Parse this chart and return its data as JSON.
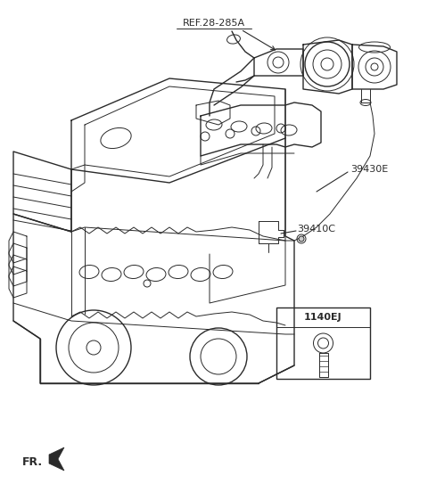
{
  "bg_color": "#ffffff",
  "lc": "#2a2a2a",
  "fig_width": 4.8,
  "fig_height": 5.52,
  "dpi": 100,
  "labels": {
    "ref": "REF.28-285A",
    "part1": "39430E",
    "part2": "39410C",
    "part3": "1140EJ",
    "fr": "FR."
  }
}
